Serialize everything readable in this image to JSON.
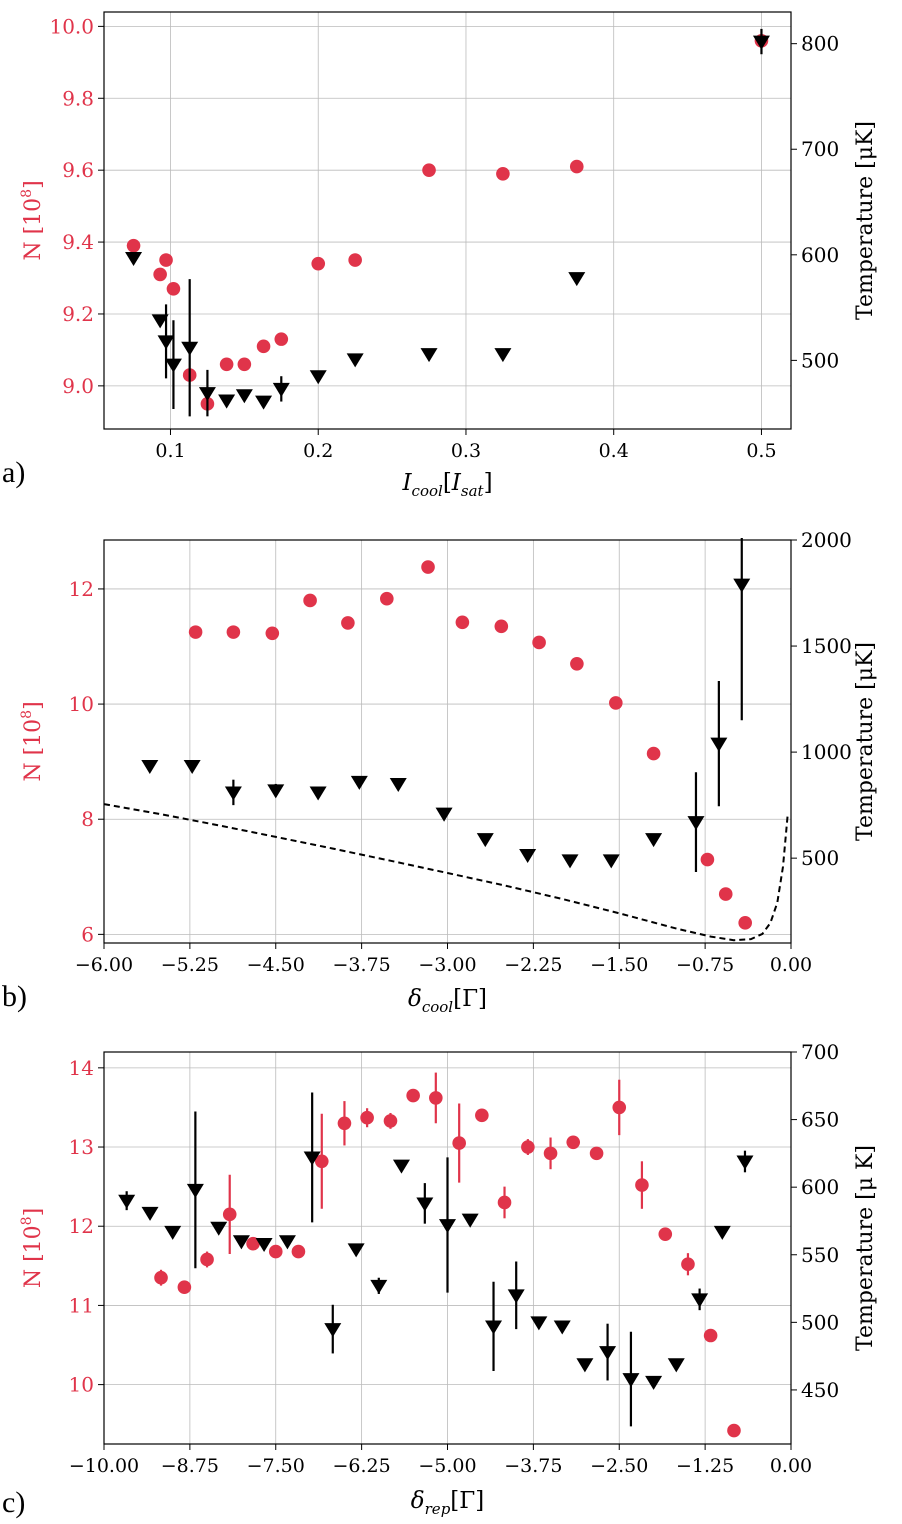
{
  "colors": {
    "n_series": "#e0344a",
    "t_series": "#000000",
    "grid": "#bbbbbb",
    "axis": "#000000"
  },
  "chart_data": [
    {
      "type": "scatter",
      "panel_label": "a)",
      "xlabel": "I_cool[I_sat]",
      "xlabel_main": "I",
      "xlabel_sub": "cool",
      "xlabel_bracket_main": "I",
      "xlabel_bracket_sub": "sat",
      "ylabel_left": "N [10^8]",
      "ylabel_left_main": "N [10",
      "ylabel_left_sup": "8",
      "ylabel_left_end": "]",
      "ylabel_right": "Temperature [μK]",
      "xlim": [
        0.055,
        0.52
      ],
      "ylim_left": [
        8.88,
        10.04
      ],
      "ylim_right": [
        435,
        830
      ],
      "xticks": [
        0.1,
        0.2,
        0.3,
        0.4,
        0.5
      ],
      "xtick_labels": [
        "0.1",
        "0.2",
        "0.3",
        "0.4",
        "0.5"
      ],
      "yticks_left": [
        9.0,
        9.2,
        9.4,
        9.6,
        9.8,
        10.0
      ],
      "ytick_labels_left": [
        "9.0",
        "9.2",
        "9.4",
        "9.6",
        "9.8",
        "10.0"
      ],
      "yticks_right": [
        500,
        600,
        700,
        800
      ],
      "ytick_labels_right": [
        "500",
        "600",
        "700",
        "800"
      ],
      "series": [
        {
          "name": "N",
          "axis": "left",
          "marker": "circle",
          "x": [
            0.075,
            0.093,
            0.097,
            0.102,
            0.113,
            0.125,
            0.138,
            0.15,
            0.163,
            0.175,
            0.2,
            0.225,
            0.275,
            0.325,
            0.375,
            0.5
          ],
          "y": [
            9.39,
            9.31,
            9.35,
            9.27,
            9.03,
            8.95,
            9.06,
            9.06,
            9.11,
            9.13,
            9.34,
            9.35,
            9.6,
            9.59,
            9.61,
            9.96
          ],
          "err": [
            0,
            0,
            0,
            0,
            0,
            0,
            0,
            0,
            0,
            0,
            0,
            0,
            0,
            0,
            0,
            0
          ]
        },
        {
          "name": "Temperature",
          "axis": "right",
          "marker": "triangle-down",
          "x": [
            0.075,
            0.093,
            0.097,
            0.102,
            0.113,
            0.125,
            0.138,
            0.15,
            0.163,
            0.175,
            0.2,
            0.225,
            0.275,
            0.325,
            0.375,
            0.5
          ],
          "y": [
            597,
            538,
            518,
            496,
            512,
            469,
            462,
            467,
            461,
            473,
            485,
            501,
            506,
            506,
            578,
            802
          ],
          "err": [
            0,
            0,
            35,
            42,
            65,
            22,
            0,
            0,
            0,
            12,
            0,
            0,
            0,
            0,
            0,
            12
          ]
        }
      ]
    },
    {
      "type": "scatter",
      "panel_label": "b)",
      "xlabel": "δ_cool[Γ]",
      "xlabel_main": "δ",
      "xlabel_sub": "cool",
      "xlabel_bracket": "[Γ]",
      "ylabel_left": "N [10^8]",
      "ylabel_left_main": "N [10",
      "ylabel_left_sup": "8",
      "ylabel_left_end": "]",
      "ylabel_right": "Temperature [μK]",
      "xlim": [
        -6.0,
        0.0
      ],
      "ylim_left": [
        5.85,
        12.85
      ],
      "ylim_right": [
        100,
        2000
      ],
      "xticks": [
        -6.0,
        -5.25,
        -4.5,
        -3.75,
        -3.0,
        -2.25,
        -1.5,
        -0.75,
        0.0
      ],
      "xtick_labels": [
        "−6.00",
        "−5.25",
        "−4.50",
        "−3.75",
        "−3.00",
        "−2.25",
        "−1.50",
        "−0.75",
        "0.00"
      ],
      "yticks_left": [
        6,
        8,
        10,
        12
      ],
      "ytick_labels_left": [
        "6",
        "8",
        "10",
        "12"
      ],
      "yticks_right": [
        500,
        1000,
        1500,
        2000
      ],
      "ytick_labels_right": [
        "500",
        "1000",
        "1500",
        "2000"
      ],
      "series": [
        {
          "name": "N",
          "axis": "left",
          "marker": "circle",
          "x": [
            -5.2,
            -4.87,
            -4.53,
            -4.2,
            -3.87,
            -3.53,
            -3.17,
            -2.87,
            -2.53,
            -2.2,
            -1.87,
            -1.53,
            -1.2,
            -0.73,
            -0.57,
            -0.4
          ],
          "y": [
            11.25,
            11.25,
            11.23,
            11.8,
            11.41,
            11.83,
            12.38,
            11.42,
            11.35,
            11.07,
            10.7,
            10.02,
            9.14,
            7.3,
            6.7,
            6.2
          ],
          "err": [
            0,
            0,
            0,
            0,
            0,
            0,
            0,
            0,
            0,
            0,
            0,
            0,
            0,
            0,
            0,
            0
          ]
        },
        {
          "name": "Temperature",
          "axis": "right",
          "marker": "triangle-down",
          "x": [
            -5.6,
            -5.23,
            -4.87,
            -4.5,
            -4.13,
            -3.77,
            -3.43,
            -3.03,
            -2.67,
            -2.3,
            -1.93,
            -1.57,
            -1.2,
            -0.83,
            -0.63,
            -0.43
          ],
          "y": [
            935,
            935,
            810,
            820,
            810,
            860,
            850,
            710,
            590,
            515,
            490,
            490,
            590,
            670,
            1040,
            1790
          ],
          "err": [
            0,
            25,
            60,
            30,
            0,
            0,
            0,
            0,
            0,
            0,
            0,
            0,
            0,
            235,
            295,
            640
          ]
        },
        {
          "name": "model",
          "axis": "right",
          "style": "dashed",
          "x": [
            -6.0,
            -5.5,
            -5.0,
            -4.5,
            -4.0,
            -3.5,
            -3.0,
            -2.5,
            -2.0,
            -1.5,
            -1.0,
            -0.7,
            -0.5,
            -0.35,
            -0.25,
            -0.18,
            -0.12,
            -0.07,
            -0.03
          ],
          "y": [
            755,
            707,
            655,
            600,
            545,
            488,
            430,
            371,
            308,
            240,
            168,
            130,
            113,
            118,
            143,
            195,
            290,
            460,
            700
          ]
        }
      ]
    },
    {
      "type": "scatter",
      "panel_label": "c)",
      "xlabel": "δ_rep[Γ]",
      "xlabel_main": "δ",
      "xlabel_sub": "rep",
      "xlabel_bracket": "[Γ]",
      "ylabel_left": "N [10^8]",
      "ylabel_left_main": "N [10",
      "ylabel_left_sup": "8",
      "ylabel_left_end": "]",
      "ylabel_right": "Temperature [μ K]",
      "xlim": [
        -10.0,
        0.0
      ],
      "ylim_left": [
        9.25,
        14.2
      ],
      "ylim_right": [
        410,
        700
      ],
      "xticks": [
        -10.0,
        -8.75,
        -7.5,
        -6.25,
        -5.0,
        -3.75,
        -2.5,
        -1.25,
        0.0
      ],
      "xtick_labels": [
        "−10.00",
        "−8.75",
        "−7.50",
        "−6.25",
        "−5.00",
        "−3.75",
        "−2.50",
        "−1.25",
        "0.00"
      ],
      "yticks_left": [
        10,
        11,
        12,
        13,
        14
      ],
      "ytick_labels_left": [
        "10",
        "11",
        "12",
        "13",
        "14"
      ],
      "yticks_right": [
        450,
        500,
        550,
        600,
        650,
        700
      ],
      "ytick_labels_right": [
        "450",
        "500",
        "550",
        "600",
        "650",
        "700"
      ],
      "series": [
        {
          "name": "N",
          "axis": "left",
          "marker": "circle",
          "x": [
            -9.17,
            -8.83,
            -8.5,
            -8.17,
            -7.83,
            -7.5,
            -7.17,
            -6.83,
            -6.5,
            -6.17,
            -5.83,
            -5.5,
            -5.17,
            -4.83,
            -4.5,
            -4.17,
            -3.83,
            -3.5,
            -3.17,
            -2.83,
            -2.5,
            -2.17,
            -1.83,
            -1.5,
            -1.17,
            -0.83
          ],
          "y": [
            11.35,
            11.23,
            11.58,
            12.15,
            11.78,
            11.68,
            11.68,
            12.82,
            13.3,
            13.37,
            13.33,
            13.65,
            13.62,
            13.05,
            13.4,
            12.3,
            13.0,
            12.92,
            13.06,
            12.92,
            13.5,
            12.52,
            11.9,
            11.52,
            10.62,
            9.42
          ],
          "err": [
            0.1,
            0,
            0.1,
            0.5,
            0,
            0,
            0,
            0.6,
            0.28,
            0.12,
            0.1,
            0,
            0.32,
            0.5,
            0,
            0.2,
            0.1,
            0.2,
            0,
            0,
            0.35,
            0.3,
            0,
            0.14,
            0,
            0
          ]
        },
        {
          "name": "Temperature",
          "axis": "right",
          "marker": "triangle-down",
          "x": [
            -9.67,
            -9.33,
            -9.0,
            -8.67,
            -8.33,
            -8.0,
            -7.67,
            -7.33,
            -6.97,
            -6.67,
            -6.33,
            -6.0,
            -5.67,
            -5.33,
            -5.0,
            -4.67,
            -4.33,
            -4.0,
            -3.67,
            -3.33,
            -3.0,
            -2.67,
            -2.33,
            -2.0,
            -1.67,
            -1.33,
            -1.0,
            -0.67
          ],
          "y": [
            590,
            581,
            567,
            598,
            570,
            560,
            558,
            560,
            622,
            495,
            554,
            527,
            616,
            588,
            572,
            576,
            497,
            520,
            500,
            497,
            469,
            478,
            458,
            456,
            469,
            517,
            567,
            619
          ],
          "err": [
            7,
            0,
            0,
            58,
            0,
            0,
            0,
            0,
            48,
            18,
            0,
            6,
            0,
            15,
            50,
            0,
            33,
            25,
            0,
            0,
            0,
            21,
            35,
            0,
            0,
            8,
            0,
            8
          ]
        }
      ]
    }
  ]
}
